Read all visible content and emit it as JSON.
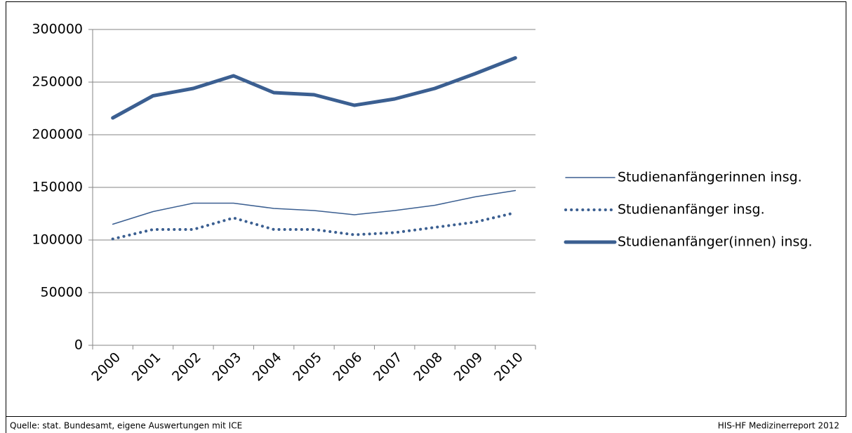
{
  "chart_data": {
    "type": "line",
    "categories": [
      "2000",
      "2001",
      "2002",
      "2003",
      "2004",
      "2005",
      "2006",
      "2007",
      "2008",
      "2009",
      "2010"
    ],
    "series": [
      {
        "name": "Studienanfängerinnen insg.",
        "color": "#3b5f91",
        "line_style": "solid",
        "line_width": 1.5,
        "values": [
          115000,
          127000,
          135000,
          135000,
          130000,
          128000,
          124000,
          128000,
          133000,
          141000,
          147000
        ]
      },
      {
        "name": "Studienanfänger insg.",
        "color": "#3b5f91",
        "line_style": "dotted",
        "line_width": 4,
        "values": [
          101000,
          110000,
          110000,
          121000,
          110000,
          110000,
          105000,
          107000,
          112000,
          117000,
          126000
        ]
      },
      {
        "name": "Studienanfänger(innen) insg.",
        "color": "#3b5f91",
        "line_style": "solid",
        "line_width": 5,
        "values": [
          216000,
          237000,
          244000,
          256000,
          240000,
          238000,
          228000,
          234000,
          244000,
          258000,
          273000
        ]
      }
    ],
    "ylim": [
      0,
      300000
    ],
    "yticks": [
      0,
      50000,
      100000,
      150000,
      200000,
      250000,
      300000
    ],
    "grid": true,
    "legend": "right"
  },
  "footer": {
    "source": "Quelle: stat. Bundesamt, eigene Auswertungen mit ICE",
    "report": "HIS-HF Medizinerreport 2012"
  }
}
